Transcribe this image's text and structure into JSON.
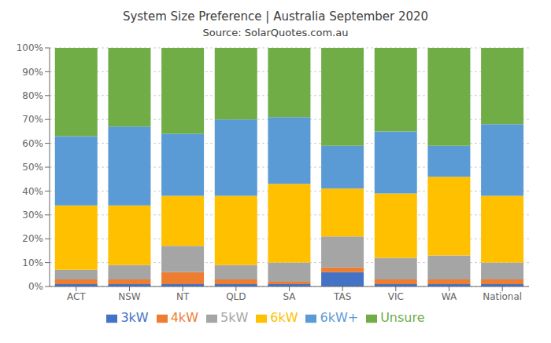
{
  "chart_data": {
    "type": "bar",
    "stacked": true,
    "title": "System Size Preference  |  Australia September 2020",
    "subtitle": "Source: SolarQuotes.com.au",
    "categories": [
      "ACT",
      "NSW",
      "NT",
      "QLD",
      "SA",
      "TAS",
      "VIC",
      "WA",
      "National"
    ],
    "series": [
      {
        "name": "3kW",
        "color": "#4472c4",
        "values": [
          1,
          1,
          1,
          1,
          1,
          6,
          1,
          1,
          1
        ]
      },
      {
        "name": "4kW",
        "color": "#ed7d31",
        "values": [
          2,
          2,
          5,
          2,
          1,
          2,
          2,
          2,
          2
        ]
      },
      {
        "name": "5kW",
        "color": "#a5a5a5",
        "values": [
          4,
          6,
          11,
          6,
          8,
          13,
          9,
          10,
          7
        ]
      },
      {
        "name": "6kW",
        "color": "#ffc000",
        "values": [
          27,
          25,
          21,
          29,
          33,
          20,
          27,
          33,
          28
        ]
      },
      {
        "name": "6kW+",
        "color": "#5b9bd5",
        "values": [
          29,
          33,
          26,
          32,
          28,
          18,
          26,
          13,
          30
        ]
      },
      {
        "name": "Unsure",
        "color": "#70ad47",
        "values": [
          37,
          33,
          36,
          30,
          29,
          41,
          35,
          41,
          32
        ]
      }
    ],
    "ylim": [
      0,
      100
    ],
    "yticks": [
      {
        "value": 0,
        "label": "0%"
      },
      {
        "value": 10,
        "label": "10%"
      },
      {
        "value": 20,
        "label": "20%"
      },
      {
        "value": 30,
        "label": "30%"
      },
      {
        "value": 40,
        "label": "40%"
      },
      {
        "value": 50,
        "label": "50%"
      },
      {
        "value": 60,
        "label": "60%"
      },
      {
        "value": 70,
        "label": "70%"
      },
      {
        "value": 80,
        "label": "80%"
      },
      {
        "value": 90,
        "label": "90%"
      },
      {
        "value": 100,
        "label": "100%"
      }
    ],
    "grid": true,
    "legend": "bottom"
  }
}
